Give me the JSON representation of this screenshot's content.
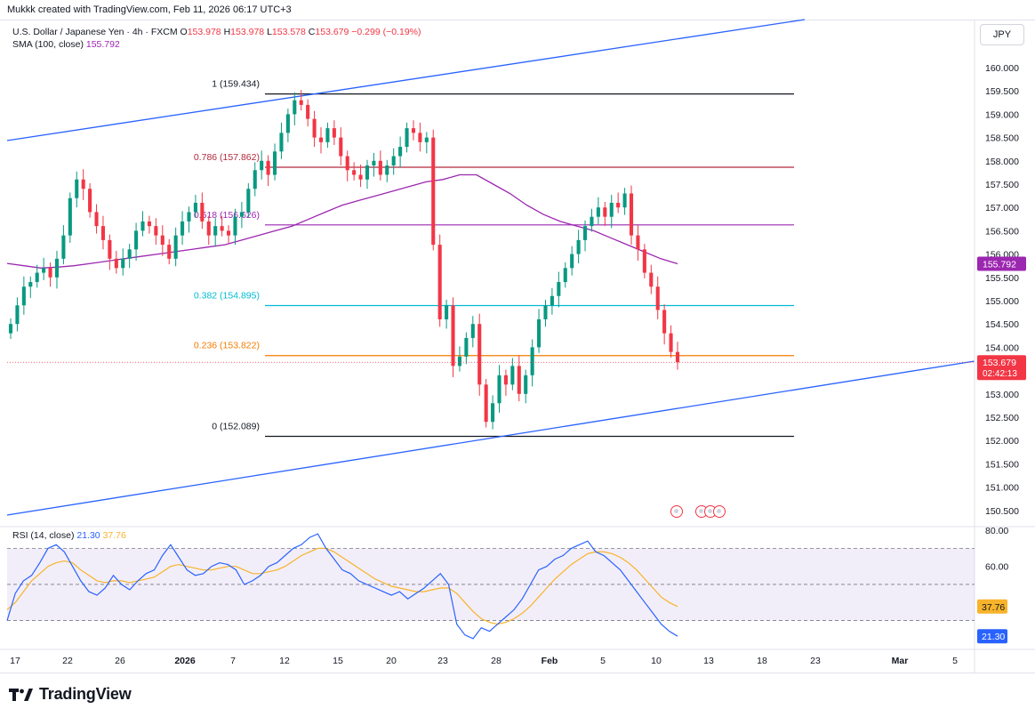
{
  "header": {
    "attribution": "Mukkk created with TradingView.com, Feb 11, 2026 06:17 UTC+3"
  },
  "legend": {
    "symbol": "U.S. Dollar / Japanese Yen · 4h · FXCM",
    "o_label": "O",
    "o_value": "153.978",
    "h_label": "H",
    "h_value": "153.978",
    "l_label": "L",
    "l_value": "153.578",
    "c_label": "C",
    "c_value": "153.679",
    "change": "−0.299 (−0.19%)",
    "sma_label": "SMA (100, close)",
    "sma_value": "155.792",
    "rsi_label": "RSI (14, close)",
    "rsi_value": "21.30",
    "rsi_ma_value": "37.76"
  },
  "currency": "JPY",
  "brand": "TradingView",
  "colors": {
    "up": "#089981",
    "down": "#f23645",
    "sma": "#9c27b0",
    "channel": "#2962ff",
    "rsi": "#2962ff",
    "rsi_ma": "#f7b32b",
    "fib_1": "#131722",
    "fib_786": "#b2283b",
    "fib_618": "#9c27b0",
    "fib_382": "#00bcd4",
    "fib_236": "#f57c00",
    "fib_0": "#131722"
  },
  "chart_data": [
    {
      "type": "candlestick",
      "ylim": [
        150.2,
        160.6
      ],
      "y_ticks": [
        "160.000",
        "159.500",
        "159.000",
        "158.500",
        "158.000",
        "157.500",
        "157.000",
        "156.500",
        "156.000",
        "155.500",
        "155.000",
        "154.500",
        "154.000",
        "153.500",
        "153.000",
        "152.500",
        "152.000",
        "151.500",
        "151.000",
        "150.500"
      ],
      "x_ticks": [
        "17",
        "22",
        "26",
        "2026",
        "7",
        "12",
        "15",
        "20",
        "23",
        "28",
        "Feb",
        "5",
        "10",
        "13",
        "18",
        "23",
        "Mar",
        "5"
      ],
      "last_price": "153.679",
      "countdown": "02:42:13",
      "sma_tag": "155.792",
      "fib_levels": [
        {
          "label": "1 (159.434)",
          "value": 159.434
        },
        {
          "label": "0.786 (157.862)",
          "value": 157.862
        },
        {
          "label": "0.618 (156.626)",
          "value": 156.626
        },
        {
          "label": "0.382 (154.895)",
          "value": 154.895
        },
        {
          "label": "0.236 (153.822)",
          "value": 153.822
        },
        {
          "label": "0 (152.089)",
          "value": 152.089
        }
      ],
      "closes": [
        154.5,
        154.9,
        155.3,
        155.4,
        155.6,
        155.7,
        155.5,
        155.9,
        156.4,
        157.2,
        157.6,
        157.4,
        156.9,
        156.6,
        156.3,
        155.9,
        155.7,
        155.9,
        156.1,
        156.5,
        156.7,
        156.6,
        156.4,
        156.2,
        155.9,
        156.4,
        156.7,
        156.9,
        157.1,
        156.7,
        156.4,
        156.6,
        156.5,
        156.4,
        156.8,
        156.9,
        157.4,
        157.8,
        158.0,
        157.7,
        158.2,
        158.6,
        159.0,
        159.3,
        159.2,
        158.9,
        158.5,
        158.4,
        158.7,
        158.5,
        158.1,
        157.8,
        157.7,
        157.6,
        157.9,
        158.0,
        157.7,
        157.9,
        158.1,
        158.3,
        158.7,
        158.6,
        158.4,
        158.5,
        156.2,
        154.6,
        154.9,
        153.6,
        153.8,
        154.2,
        154.5,
        153.2,
        152.4,
        152.8,
        153.4,
        153.2,
        153.6,
        153.0,
        153.4,
        154.0,
        154.6,
        154.9,
        155.1,
        155.4,
        155.7,
        156.0,
        156.3,
        156.6,
        156.8,
        157.0,
        156.8,
        157.1,
        157.0,
        157.3,
        156.4,
        156.1,
        155.6,
        155.3,
        154.8,
        154.3,
        153.9,
        153.679
      ],
      "sma": [
        155.8,
        155.75,
        155.7,
        155.72,
        155.75,
        155.8,
        155.85,
        155.9,
        155.95,
        156.0,
        156.05,
        156.1,
        156.15,
        156.2,
        156.3,
        156.4,
        156.5,
        156.6,
        156.75,
        156.9,
        157.05,
        157.15,
        157.25,
        157.35,
        157.45,
        157.55,
        157.6,
        157.7,
        157.7,
        157.5,
        157.3,
        157.05,
        156.85,
        156.7,
        156.6,
        156.5,
        156.35,
        156.2,
        156.05,
        155.9,
        155.792
      ],
      "sma_start_index": 0,
      "sma_end_index": 101
    },
    {
      "type": "line",
      "title": "RSI (14, close)",
      "ylim": [
        15,
        82
      ],
      "y_ticks": [
        "80.00",
        "60.00"
      ],
      "bands": [
        30,
        50,
        70
      ],
      "series": [
        {
          "name": "RSI",
          "values": [
            30,
            45,
            52,
            55,
            62,
            70,
            72,
            68,
            60,
            52,
            46,
            44,
            48,
            55,
            50,
            47,
            52,
            56,
            58,
            66,
            72,
            65,
            58,
            55,
            56,
            60,
            62,
            61,
            58,
            50,
            52,
            55,
            60,
            62,
            66,
            70,
            72,
            76,
            78,
            70,
            64,
            58,
            56,
            52,
            50,
            48,
            46,
            44,
            46,
            42,
            45,
            48,
            52,
            56,
            50,
            28,
            22,
            20,
            26,
            24,
            28,
            32,
            36,
            42,
            50,
            58,
            60,
            64,
            66,
            70,
            72,
            74,
            68,
            66,
            62,
            58,
            52,
            46,
            40,
            34,
            28,
            24,
            21.3
          ]
        },
        {
          "name": "MA",
          "values": [
            36,
            40,
            46,
            52,
            56,
            60,
            62,
            63,
            62,
            58,
            55,
            52,
            51,
            52,
            52,
            51,
            52,
            53,
            54,
            57,
            60,
            61,
            60,
            59,
            58,
            58,
            59,
            60,
            60,
            58,
            56,
            56,
            57,
            58,
            60,
            63,
            66,
            68,
            70,
            70,
            68,
            65,
            62,
            59,
            56,
            53,
            51,
            49,
            48,
            47,
            46,
            46,
            47,
            48,
            48,
            45,
            40,
            35,
            31,
            29,
            28,
            29,
            31,
            34,
            38,
            43,
            48,
            53,
            57,
            61,
            64,
            67,
            68,
            68,
            67,
            65,
            62,
            58,
            53,
            48,
            43,
            40,
            37.76
          ]
        }
      ]
    }
  ]
}
